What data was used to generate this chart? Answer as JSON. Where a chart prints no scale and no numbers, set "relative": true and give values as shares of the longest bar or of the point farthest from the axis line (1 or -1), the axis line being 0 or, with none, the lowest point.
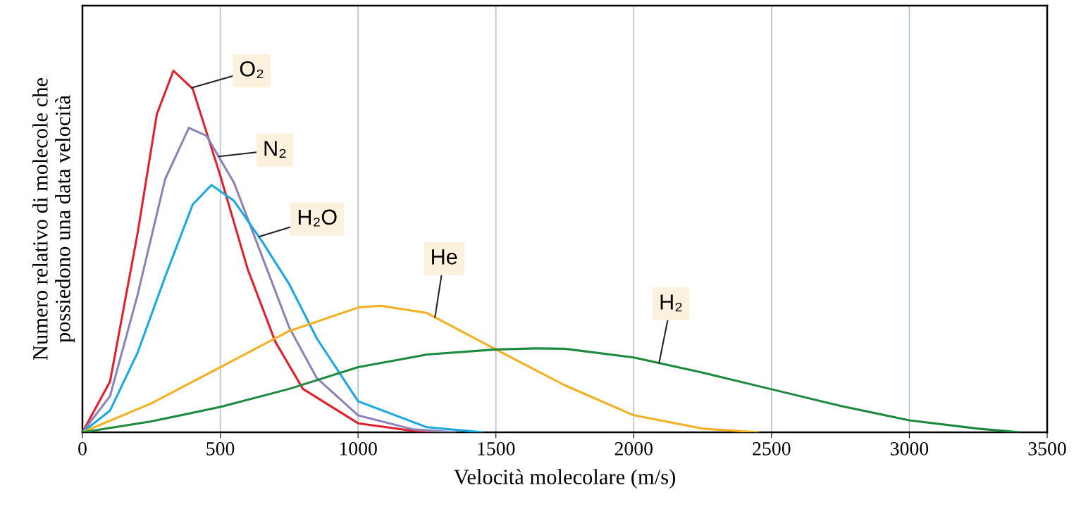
{
  "chart_data": {
    "type": "line",
    "relative": true,
    "xlabel": "Velocità molecolare (m/s)",
    "ylabel": "Numero relativo di molecole che\npossiedono una data velocità",
    "xlim": [
      0,
      3500
    ],
    "xticks": [
      0,
      500,
      1000,
      1500,
      2000,
      2500,
      3000,
      3500
    ],
    "grid": "x",
    "legend": false,
    "marker": "none",
    "line_style": "solid",
    "tick_labels": "x",
    "series": [
      {
        "name": "O₂",
        "color": "#e0202c",
        "x": [
          0,
          100,
          200,
          270,
          330,
          400,
          500,
          600,
          700,
          800,
          1000,
          1200,
          1300
        ],
        "values": [
          0,
          0.14,
          0.55,
          0.88,
          1.0,
          0.95,
          0.71,
          0.45,
          0.25,
          0.12,
          0.025,
          0.004,
          0
        ]
      },
      {
        "name": "N₂",
        "color": "#8c82b8",
        "x": [
          0,
          100,
          200,
          300,
          386,
          450,
          550,
          650,
          750,
          850,
          1000,
          1200,
          1350
        ],
        "values": [
          0,
          0.1,
          0.38,
          0.7,
          0.842,
          0.82,
          0.69,
          0.49,
          0.29,
          0.15,
          0.047,
          0.008,
          0
        ]
      },
      {
        "name": "H₂O",
        "color": "#1ba8e0",
        "x": [
          0,
          100,
          200,
          300,
          400,
          468,
          550,
          650,
          750,
          850,
          1000,
          1250,
          1450
        ],
        "values": [
          0,
          0.06,
          0.22,
          0.43,
          0.63,
          0.684,
          0.64,
          0.53,
          0.41,
          0.26,
          0.086,
          0.014,
          0
        ]
      },
      {
        "name": "He",
        "color": "#f5b01f",
        "x": [
          0,
          250,
          500,
          750,
          1000,
          1081,
          1250,
          1500,
          1750,
          2000,
          2250,
          2450
        ],
        "values": [
          0,
          0.08,
          0.18,
          0.28,
          0.345,
          0.35,
          0.33,
          0.229,
          0.13,
          0.047,
          0.01,
          0
        ]
      },
      {
        "name": "H₂",
        "color": "#1e8a3e",
        "x": [
          0,
          250,
          500,
          750,
          1000,
          1250,
          1500,
          1644,
          1750,
          2000,
          2250,
          2500,
          2750,
          3000,
          3250,
          3400
        ],
        "values": [
          0,
          0.03,
          0.07,
          0.12,
          0.18,
          0.215,
          0.229,
          0.232,
          0.231,
          0.207,
          0.165,
          0.119,
          0.073,
          0.033,
          0.01,
          0
        ]
      }
    ]
  }
}
